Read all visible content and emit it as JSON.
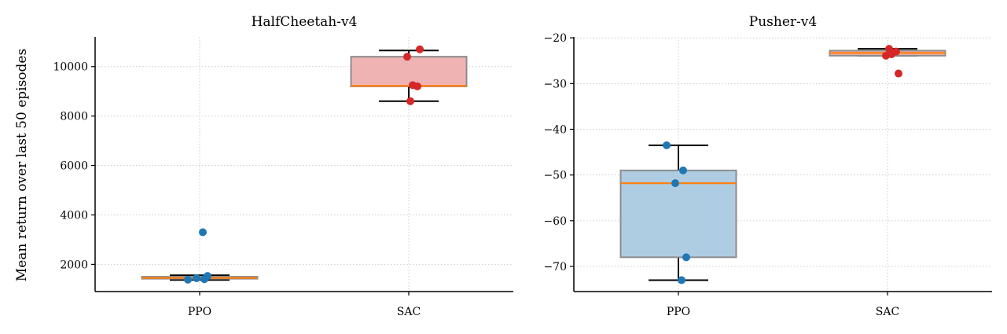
{
  "figure": {
    "ylabel": "Mean return over last 50 episodes"
  },
  "colors": {
    "PPO": "#1f77b4",
    "SAC": "#d62728",
    "PPO_box_fill": "#aecde3",
    "SAC_box_fill": "#f0b3b4",
    "median": "#ff7f0e",
    "box_edge": "#8c8c8c",
    "whisker": "#000000"
  },
  "chart_data": [
    {
      "type": "box",
      "title": "HalfCheetah-v4",
      "categories": [
        "PPO",
        "SAC"
      ],
      "ylim": [
        900,
        11200
      ],
      "yticks": [
        2000,
        4000,
        6000,
        8000,
        10000
      ],
      "grid": true,
      "boxes": [
        {
          "name": "PPO",
          "q1": 1420,
          "median": 1450,
          "q3": 1500,
          "whisker_low": 1370,
          "whisker_high": 1560
        },
        {
          "name": "SAC",
          "q1": 9200,
          "median": 9220,
          "q3": 10400,
          "whisker_low": 8600,
          "whisker_high": 10650
        }
      ],
      "points": [
        {
          "name": "PPO",
          "values": [
            1380,
            1400,
            1440,
            1530,
            3300
          ]
        },
        {
          "name": "SAC",
          "values": [
            8600,
            9200,
            9250,
            10400,
            10700
          ]
        }
      ]
    },
    {
      "type": "box",
      "title": "Pusher-v4",
      "categories": [
        "PPO",
        "SAC"
      ],
      "ylim": [
        -75.5,
        -19.8
      ],
      "yticks": [
        -70,
        -60,
        -50,
        -40,
        -30,
        -20
      ],
      "grid": true,
      "boxes": [
        {
          "name": "PPO",
          "q1": -68,
          "median": -51.8,
          "q3": -49,
          "whisker_low": -73,
          "whisker_high": -43.5
        },
        {
          "name": "SAC",
          "q1": -23.9,
          "median": -23.3,
          "q3": -22.8,
          "whisker_low": -23.9,
          "whisker_high": -22.4
        }
      ],
      "points": [
        {
          "name": "PPO",
          "values": [
            -43.5,
            -49,
            -51.8,
            -68,
            -73
          ]
        },
        {
          "name": "SAC",
          "values": [
            -22.4,
            -23.0,
            -23.6,
            -23.9,
            -27.8
          ]
        }
      ]
    }
  ]
}
